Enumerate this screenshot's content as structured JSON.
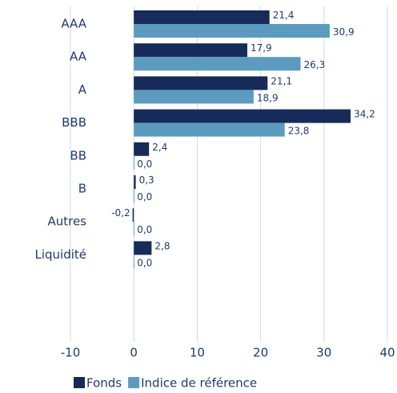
{
  "chart_data": {
    "type": "barh",
    "categories": [
      "AAA",
      "AA",
      "A",
      "BBB",
      "BB",
      "B",
      "Autres",
      "Liquidité"
    ],
    "series": [
      {
        "name": "Fonds",
        "color": "#172b5a",
        "values": [
          21.4,
          17.9,
          21.1,
          34.2,
          2.4,
          0.3,
          -0.2,
          2.8
        ],
        "value_labels": [
          "21,4",
          "17,9",
          "21,1",
          "34,2",
          "2,4",
          "0,3",
          "-0,2",
          "2,8"
        ]
      },
      {
        "name": "Indice de référence",
        "color": "#5b9bbf",
        "values": [
          30.9,
          26.3,
          18.9,
          23.8,
          0,
          0,
          0,
          0
        ],
        "value_labels": [
          "30,9",
          "26,3",
          "18,9",
          "23,8",
          "0,0",
          "0,0",
          "0,0",
          "0,0"
        ]
      }
    ],
    "xlim": [
      -10,
      40
    ],
    "xticks": [
      -10,
      0,
      10,
      20,
      30,
      40
    ],
    "grid": true,
    "legend": "bottom"
  }
}
